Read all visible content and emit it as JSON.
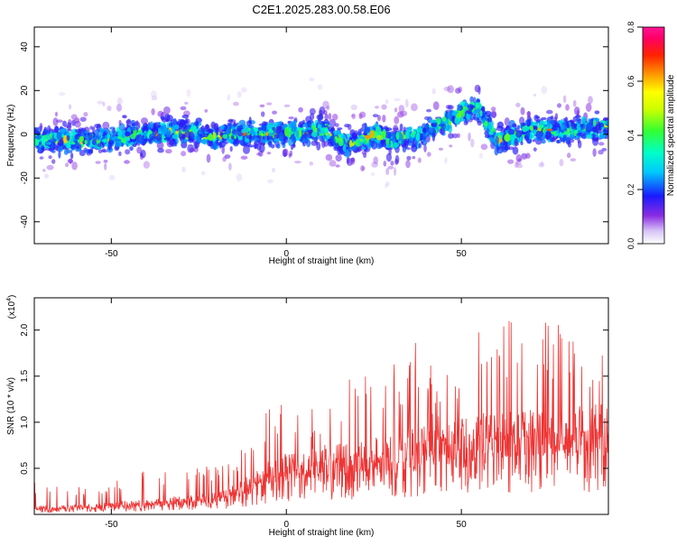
{
  "title": "C2E1.2025.283.00.58.E06",
  "chart_data": [
    {
      "type": "heatmap",
      "xlabel": "Height of straight line (km)",
      "ylabel": "Frequency (Hz)",
      "xlim": [
        -72,
        92
      ],
      "ylim": [
        -50,
        49
      ],
      "xticks": [
        -50,
        0,
        50
      ],
      "yticks": [
        -40,
        -20,
        0,
        20,
        40
      ],
      "band_center_hz": [
        [
          -72,
          -2
        ],
        [
          -60,
          -3
        ],
        [
          -50,
          -2
        ],
        [
          -40,
          0
        ],
        [
          -30,
          1
        ],
        [
          -20,
          -1
        ],
        [
          -10,
          1
        ],
        [
          0,
          0
        ],
        [
          10,
          2
        ],
        [
          18,
          -5
        ],
        [
          25,
          0
        ],
        [
          30,
          -3
        ],
        [
          40,
          1
        ],
        [
          45,
          5
        ],
        [
          50,
          10
        ],
        [
          55,
          12
        ],
        [
          60,
          -3
        ],
        [
          70,
          2
        ],
        [
          80,
          2
        ],
        [
          92,
          3
        ]
      ],
      "band_halfwidth_hz": 7,
      "colorbar": {
        "label": "Normalized spectral amplitude",
        "range": [
          0.0,
          0.8
        ],
        "ticks": [
          "0.0",
          "0.2",
          "0.4",
          "0.6",
          "0.8"
        ]
      }
    },
    {
      "type": "line",
      "xlabel": "Height of straight line (km)",
      "ylabel": "SNR (10 * v/v)",
      "exponent_label": "(x10",
      "exponent_power": "4",
      "exponent_close": ")",
      "xlim": [
        -72,
        92
      ],
      "ylim": [
        0,
        2.35
      ],
      "xticks": [
        -50,
        0,
        50
      ],
      "yticks": [
        "0.5",
        "1.0",
        "1.5",
        "2.0"
      ],
      "color": "#ee3333",
      "envelope": {
        "x": [
          -72,
          -60,
          -50,
          -40,
          -30,
          -20,
          -15,
          -10,
          -5,
          0,
          10,
          20,
          30,
          40,
          42,
          45,
          50,
          60,
          70,
          80,
          92
        ],
        "mean": [
          0.06,
          0.07,
          0.09,
          0.11,
          0.14,
          0.16,
          0.22,
          0.3,
          0.4,
          0.45,
          0.5,
          0.55,
          0.58,
          0.68,
          0.75,
          0.7,
          0.72,
          0.75,
          0.78,
          0.78,
          0.8
        ],
        "peak": [
          0.35,
          0.3,
          0.35,
          0.48,
          0.55,
          0.55,
          0.62,
          0.95,
          1.2,
          1.2,
          1.15,
          1.55,
          1.6,
          2.0,
          1.6,
          1.45,
          1.9,
          2.1,
          2.3,
          2.0,
          1.9
        ]
      }
    }
  ]
}
